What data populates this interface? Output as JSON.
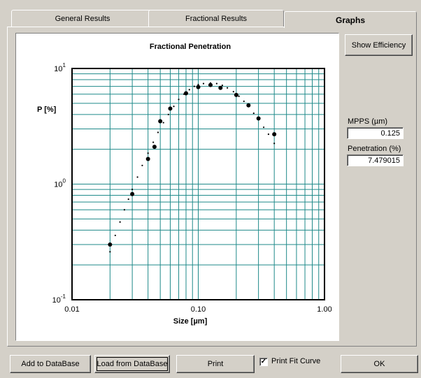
{
  "tabs": [
    {
      "label": "General Results"
    },
    {
      "label": "Fractional Results"
    },
    {
      "label": "Graphs"
    }
  ],
  "buttons": {
    "show_efficiency": "Show Efficiency",
    "add_to_db": "Add to DataBase",
    "load_from_db": "Load from DataBase",
    "print": "Print",
    "ok": "OK"
  },
  "side": {
    "mpps_label": "MPPS (µm)",
    "mpps_value": "0.125",
    "penetration_label": "Penetration (%)",
    "penetration_value": "7.479015"
  },
  "print_fit": {
    "label": "Print Fit Curve",
    "checked": true
  },
  "chart_data": {
    "type": "scatter",
    "title": "Fractional Penetration",
    "xlabel": "Size [µm]",
    "ylabel": "P [%]",
    "xscale": "log",
    "yscale": "log",
    "xlim": [
      0.01,
      1.0
    ],
    "ylim": [
      0.1,
      10
    ],
    "xticks": [
      "0.01",
      "0.10",
      "1.00"
    ],
    "yticks": [
      {
        "base": "10",
        "exp": "-1"
      },
      {
        "base": "10",
        "exp": "0"
      },
      {
        "base": "10",
        "exp": "1"
      }
    ],
    "grid": true,
    "series": [
      {
        "x": [
          0.02,
          0.03,
          0.04,
          0.045,
          0.05,
          0.06,
          0.08,
          0.1,
          0.125,
          0.15,
          0.2,
          0.25,
          0.3,
          0.4
        ],
        "y": [
          0.3,
          0.82,
          1.65,
          2.1,
          3.5,
          4.5,
          6.1,
          6.9,
          7.2,
          6.8,
          5.9,
          4.8,
          3.7,
          2.7
        ]
      }
    ],
    "fit_curve": {
      "x": [
        0.02,
        0.022,
        0.024,
        0.026,
        0.028,
        0.03,
        0.033,
        0.036,
        0.04,
        0.044,
        0.048,
        0.053,
        0.058,
        0.064,
        0.07,
        0.077,
        0.085,
        0.093,
        0.1,
        0.11,
        0.125,
        0.14,
        0.155,
        0.17,
        0.19,
        0.21,
        0.23,
        0.25,
        0.275,
        0.3,
        0.33,
        0.36,
        0.4
      ],
      "y": [
        0.26,
        0.36,
        0.47,
        0.6,
        0.74,
        0.9,
        1.15,
        1.45,
        1.85,
        2.3,
        2.8,
        3.4,
        4.0,
        4.7,
        5.4,
        6.0,
        6.55,
        7.0,
        7.25,
        7.4,
        7.48,
        7.4,
        7.15,
        6.8,
        6.3,
        5.75,
        5.2,
        4.7,
        4.1,
        3.6,
        3.1,
        2.7,
        2.25
      ]
    }
  }
}
